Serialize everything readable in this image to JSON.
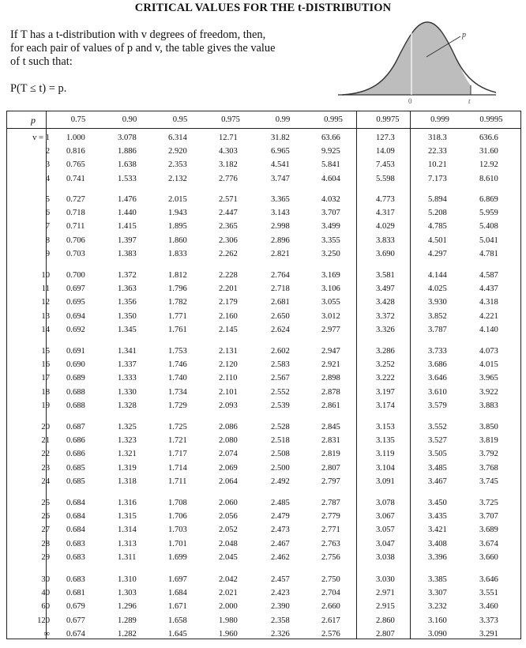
{
  "title": "CRITICAL VALUES FOR THE t-DISTRIBUTION",
  "intro": {
    "line1": "If T has a t-distribution with v degrees of freedom, then,",
    "line2": "for each pair of values of p and v, the table gives the value",
    "line3": "of t such that:"
  },
  "formula": "P(T ≤ t) = p.",
  "curve_labels": {
    "p": "p",
    "zero": "0",
    "t": "t"
  },
  "table": {
    "p_label": "p",
    "nu_label": "v = 1",
    "p_values": [
      "0.75",
      "0.90",
      "0.95",
      "0.975",
      "0.99",
      "0.995",
      "0.9975",
      "0.999",
      "0.9995"
    ],
    "groups": [
      [
        {
          "v": "v = 1",
          "t": [
            "1.000",
            "3.078",
            "6.314",
            "12.71",
            "31.82",
            "63.66",
            "127.3",
            "318.3",
            "636.6"
          ]
        },
        {
          "v": "2",
          "t": [
            "0.816",
            "1.886",
            "2.920",
            "4.303",
            "6.965",
            "9.925",
            "14.09",
            "22.33",
            "31.60"
          ]
        },
        {
          "v": "3",
          "t": [
            "0.765",
            "1.638",
            "2.353",
            "3.182",
            "4.541",
            "5.841",
            "7.453",
            "10.21",
            "12.92"
          ]
        },
        {
          "v": "4",
          "t": [
            "0.741",
            "1.533",
            "2.132",
            "2.776",
            "3.747",
            "4.604",
            "5.598",
            "7.173",
            "8.610"
          ]
        }
      ],
      [
        {
          "v": "5",
          "t": [
            "0.727",
            "1.476",
            "2.015",
            "2.571",
            "3.365",
            "4.032",
            "4.773",
            "5.894",
            "6.869"
          ]
        },
        {
          "v": "6",
          "t": [
            "0.718",
            "1.440",
            "1.943",
            "2.447",
            "3.143",
            "3.707",
            "4.317",
            "5.208",
            "5.959"
          ]
        },
        {
          "v": "7",
          "t": [
            "0.711",
            "1.415",
            "1.895",
            "2.365",
            "2.998",
            "3.499",
            "4.029",
            "4.785",
            "5.408"
          ]
        },
        {
          "v": "8",
          "t": [
            "0.706",
            "1.397",
            "1.860",
            "2.306",
            "2.896",
            "3.355",
            "3.833",
            "4.501",
            "5.041"
          ]
        },
        {
          "v": "9",
          "t": [
            "0.703",
            "1.383",
            "1.833",
            "2.262",
            "2.821",
            "3.250",
            "3.690",
            "4.297",
            "4.781"
          ]
        }
      ],
      [
        {
          "v": "10",
          "t": [
            "0.700",
            "1.372",
            "1.812",
            "2.228",
            "2.764",
            "3.169",
            "3.581",
            "4.144",
            "4.587"
          ]
        },
        {
          "v": "11",
          "t": [
            "0.697",
            "1.363",
            "1.796",
            "2.201",
            "2.718",
            "3.106",
            "3.497",
            "4.025",
            "4.437"
          ]
        },
        {
          "v": "12",
          "t": [
            "0.695",
            "1.356",
            "1.782",
            "2.179",
            "2.681",
            "3.055",
            "3.428",
            "3.930",
            "4.318"
          ]
        },
        {
          "v": "13",
          "t": [
            "0.694",
            "1.350",
            "1.771",
            "2.160",
            "2.650",
            "3.012",
            "3.372",
            "3.852",
            "4.221"
          ]
        },
        {
          "v": "14",
          "t": [
            "0.692",
            "1.345",
            "1.761",
            "2.145",
            "2.624",
            "2.977",
            "3.326",
            "3.787",
            "4.140"
          ]
        }
      ],
      [
        {
          "v": "15",
          "t": [
            "0.691",
            "1.341",
            "1.753",
            "2.131",
            "2.602",
            "2.947",
            "3.286",
            "3.733",
            "4.073"
          ]
        },
        {
          "v": "16",
          "t": [
            "0.690",
            "1.337",
            "1.746",
            "2.120",
            "2.583",
            "2.921",
            "3.252",
            "3.686",
            "4.015"
          ]
        },
        {
          "v": "17",
          "t": [
            "0.689",
            "1.333",
            "1.740",
            "2.110",
            "2.567",
            "2.898",
            "3.222",
            "3.646",
            "3.965"
          ]
        },
        {
          "v": "18",
          "t": [
            "0.688",
            "1.330",
            "1.734",
            "2.101",
            "2.552",
            "2.878",
            "3.197",
            "3.610",
            "3.922"
          ]
        },
        {
          "v": "19",
          "t": [
            "0.688",
            "1.328",
            "1.729",
            "2.093",
            "2.539",
            "2.861",
            "3.174",
            "3.579",
            "3.883"
          ]
        }
      ],
      [
        {
          "v": "20",
          "t": [
            "0.687",
            "1.325",
            "1.725",
            "2.086",
            "2.528",
            "2.845",
            "3.153",
            "3.552",
            "3.850"
          ]
        },
        {
          "v": "21",
          "t": [
            "0.686",
            "1.323",
            "1.721",
            "2.080",
            "2.518",
            "2.831",
            "3.135",
            "3.527",
            "3.819"
          ]
        },
        {
          "v": "22",
          "t": [
            "0.686",
            "1.321",
            "1.717",
            "2.074",
            "2.508",
            "2.819",
            "3.119",
            "3.505",
            "3.792"
          ]
        },
        {
          "v": "23",
          "t": [
            "0.685",
            "1.319",
            "1.714",
            "2.069",
            "2.500",
            "2.807",
            "3.104",
            "3.485",
            "3.768"
          ]
        },
        {
          "v": "24",
          "t": [
            "0.685",
            "1.318",
            "1.711",
            "2.064",
            "2.492",
            "2.797",
            "3.091",
            "3.467",
            "3.745"
          ]
        }
      ],
      [
        {
          "v": "25",
          "t": [
            "0.684",
            "1.316",
            "1.708",
            "2.060",
            "2.485",
            "2.787",
            "3.078",
            "3.450",
            "3.725"
          ]
        },
        {
          "v": "26",
          "t": [
            "0.684",
            "1.315",
            "1.706",
            "2.056",
            "2.479",
            "2.779",
            "3.067",
            "3.435",
            "3.707"
          ]
        },
        {
          "v": "27",
          "t": [
            "0.684",
            "1.314",
            "1.703",
            "2.052",
            "2.473",
            "2.771",
            "3.057",
            "3.421",
            "3.689"
          ]
        },
        {
          "v": "28",
          "t": [
            "0.683",
            "1.313",
            "1.701",
            "2.048",
            "2.467",
            "2.763",
            "3.047",
            "3.408",
            "3.674"
          ]
        },
        {
          "v": "29",
          "t": [
            "0.683",
            "1.311",
            "1.699",
            "2.045",
            "2.462",
            "2.756",
            "3.038",
            "3.396",
            "3.660"
          ]
        }
      ],
      [
        {
          "v": "30",
          "t": [
            "0.683",
            "1.310",
            "1.697",
            "2.042",
            "2.457",
            "2.750",
            "3.030",
            "3.385",
            "3.646"
          ]
        },
        {
          "v": "40",
          "t": [
            "0.681",
            "1.303",
            "1.684",
            "2.021",
            "2.423",
            "2.704",
            "2.971",
            "3.307",
            "3.551"
          ]
        },
        {
          "v": "60",
          "t": [
            "0.679",
            "1.296",
            "1.671",
            "2.000",
            "2.390",
            "2.660",
            "2.915",
            "3.232",
            "3.460"
          ]
        },
        {
          "v": "120",
          "t": [
            "0.677",
            "1.289",
            "1.658",
            "1.980",
            "2.358",
            "2.617",
            "2.860",
            "3.160",
            "3.373"
          ]
        },
        {
          "v": "∞",
          "t": [
            "0.674",
            "1.282",
            "1.645",
            "1.960",
            "2.326",
            "2.576",
            "2.807",
            "3.090",
            "3.291"
          ]
        }
      ]
    ]
  }
}
